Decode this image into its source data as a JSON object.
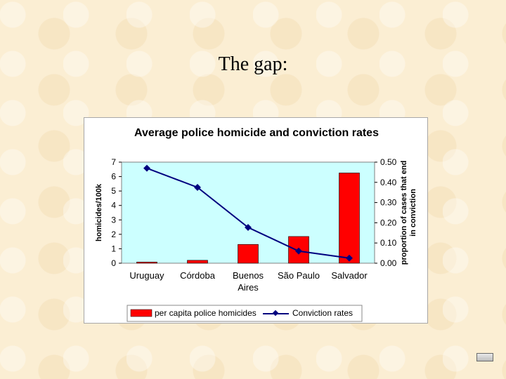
{
  "slide": {
    "title": "The gap:"
  },
  "chart_data": {
    "type": "bar+line",
    "title": "Average police homicide and conviction rates",
    "categories": [
      "Uruguay",
      "Córdoba",
      "Buenos Aires",
      "São Paulo",
      "Salvador"
    ],
    "category_lines": [
      [
        "Uruguay"
      ],
      [
        "Córdoba"
      ],
      [
        "Buenos",
        "Aires"
      ],
      [
        "São Paulo"
      ],
      [
        "Salvador"
      ]
    ],
    "series": [
      {
        "name": "per capita police homicides",
        "type": "bar",
        "axis": "left",
        "color": "#ff0000",
        "values": [
          0.08,
          0.2,
          1.3,
          1.85,
          6.25
        ]
      },
      {
        "name": "Conviction rates",
        "type": "line",
        "axis": "right",
        "color": "#00007f",
        "values": [
          0.47,
          0.375,
          0.177,
          0.06,
          0.025
        ]
      }
    ],
    "y_left": {
      "label": "homicides/100k",
      "range": [
        0,
        7
      ],
      "ticks": [
        "0",
        "1",
        "2",
        "3",
        "4",
        "5",
        "6",
        "7"
      ]
    },
    "y_right": {
      "label_lines": [
        "proportion of cases that end",
        "in conviction"
      ],
      "range": [
        0,
        0.5
      ],
      "ticks": [
        "0.00",
        "0.10",
        "0.20",
        "0.30",
        "0.40",
        "0.50"
      ]
    },
    "plot_background": "#ccffff",
    "legend_placement": "bottom"
  }
}
